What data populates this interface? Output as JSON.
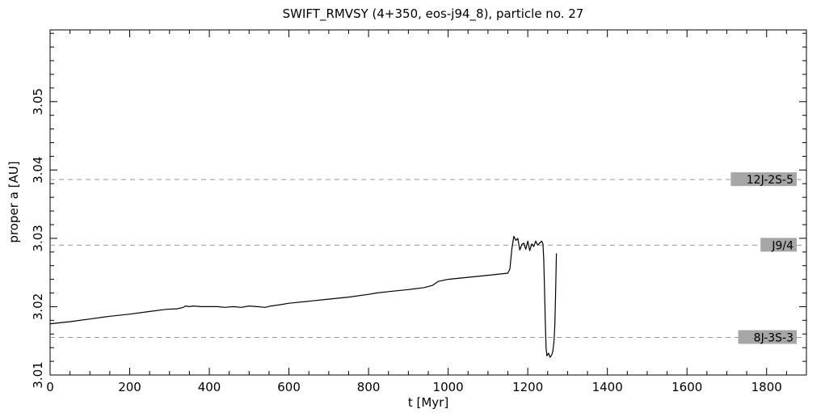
{
  "chart_data": {
    "type": "line",
    "title": "SWIFT_RMVSY (4+350, eos-j94_8), particle no. 27",
    "xlabel": "t [Myr]",
    "ylabel": "proper a [AU]",
    "xlim": [
      0,
      1900
    ],
    "ylim": [
      3.01,
      3.0605
    ],
    "xticks": [
      0,
      200,
      400,
      600,
      800,
      1000,
      1200,
      1400,
      1600,
      1800
    ],
    "xtick_labels": [
      "0",
      "200",
      "400",
      "600",
      "800",
      "1000",
      "1200",
      "1400",
      "1600",
      "1800"
    ],
    "yticks": [
      3.01,
      3.02,
      3.03,
      3.04,
      3.05
    ],
    "ytick_labels": [
      "3.01",
      "3.02",
      "3.03",
      "3.04",
      "3.05"
    ],
    "grid": false,
    "resonances": [
      {
        "label": "12J-2S-5",
        "a": 3.0386
      },
      {
        "label": "J9/4",
        "a": 3.029
      },
      {
        "label": "8J-3S-3",
        "a": 3.0155
      }
    ],
    "series": [
      {
        "values": [
          [
            0,
            3.0175
          ],
          [
            50,
            3.0178
          ],
          [
            100,
            3.0182
          ],
          [
            150,
            3.0186
          ],
          [
            200,
            3.0189
          ],
          [
            250,
            3.0193
          ],
          [
            290,
            3.0196
          ],
          [
            320,
            3.0197
          ],
          [
            335,
            3.0199
          ],
          [
            340,
            3.0201
          ],
          [
            350,
            3.02
          ],
          [
            360,
            3.0201
          ],
          [
            380,
            3.02
          ],
          [
            400,
            3.02
          ],
          [
            420,
            3.02
          ],
          [
            440,
            3.0199
          ],
          [
            460,
            3.02
          ],
          [
            480,
            3.0199
          ],
          [
            500,
            3.0201
          ],
          [
            520,
            3.02
          ],
          [
            540,
            3.0199
          ],
          [
            555,
            3.0201
          ],
          [
            580,
            3.0203
          ],
          [
            600,
            3.0205
          ],
          [
            650,
            3.0208
          ],
          [
            700,
            3.0211
          ],
          [
            750,
            3.0214
          ],
          [
            800,
            3.0218
          ],
          [
            820,
            3.022
          ],
          [
            850,
            3.0222
          ],
          [
            900,
            3.0225
          ],
          [
            940,
            3.0228
          ],
          [
            960,
            3.0231
          ],
          [
            975,
            3.0237
          ],
          [
            1000,
            3.024
          ],
          [
            1050,
            3.0243
          ],
          [
            1100,
            3.0246
          ],
          [
            1150,
            3.0249
          ],
          [
            1155,
            3.0255
          ],
          [
            1160,
            3.0285
          ],
          [
            1165,
            3.0303
          ],
          [
            1170,
            3.0297
          ],
          [
            1175,
            3.03
          ],
          [
            1180,
            3.0283
          ],
          [
            1185,
            3.0291
          ],
          [
            1190,
            3.0293
          ],
          [
            1195,
            3.0284
          ],
          [
            1200,
            3.0296
          ],
          [
            1205,
            3.0282
          ],
          [
            1210,
            3.0292
          ],
          [
            1215,
            3.0288
          ],
          [
            1220,
            3.0296
          ],
          [
            1225,
            3.029
          ],
          [
            1230,
            3.0293
          ],
          [
            1235,
            3.0296
          ],
          [
            1238,
            3.0292
          ],
          [
            1240,
            3.027
          ],
          [
            1242,
            3.023
          ],
          [
            1244,
            3.018
          ],
          [
            1246,
            3.014
          ],
          [
            1248,
            3.0128
          ],
          [
            1252,
            3.0132
          ],
          [
            1256,
            3.0126
          ],
          [
            1260,
            3.0129
          ],
          [
            1263,
            3.0135
          ],
          [
            1266,
            3.015
          ],
          [
            1268,
            3.0175
          ],
          [
            1270,
            3.022
          ],
          [
            1272,
            3.0278
          ]
        ]
      }
    ]
  }
}
